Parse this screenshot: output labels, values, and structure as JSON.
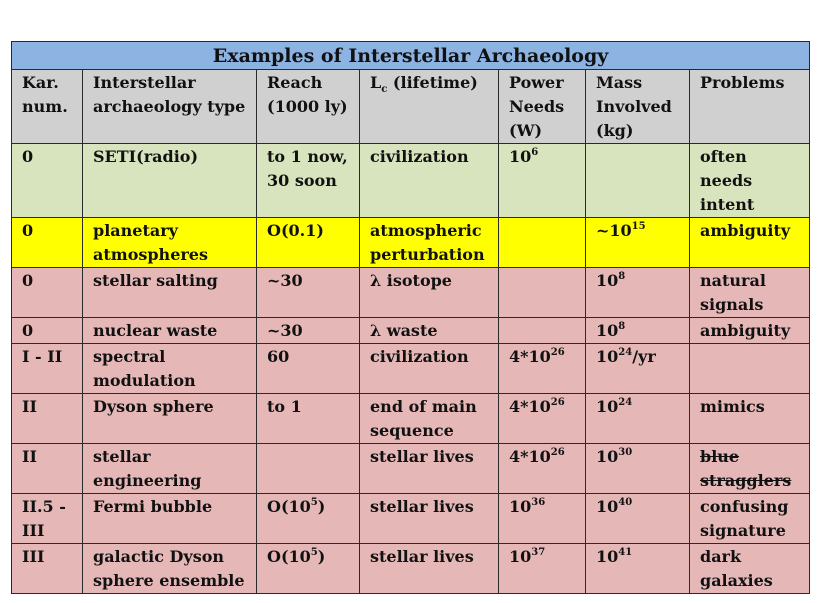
{
  "title": "Examples of Interstellar Archaeology",
  "headers": {
    "kar": "Kar. num.",
    "type": "Interstellar archaeology type",
    "reach": "Reach (1000 ly)",
    "lc": "L",
    "lc_sub": "c",
    "lc_rest": " (lifetime)",
    "power": "Power Needs (W)",
    "mass": "Mass Involved (kg)",
    "problems": "Problems"
  },
  "rows": [
    {
      "kar": "0",
      "type": "SETI(radio)",
      "reach": "to 1 now, 30 soon",
      "lc": "civilization",
      "power": {
        "base": "10",
        "exp": "6",
        "suffix": ""
      },
      "mass": {
        "pre": "",
        "base": "",
        "exp": "",
        "suffix": ""
      },
      "problems": "often needs intent"
    },
    {
      "kar": "0",
      "type": "planetary atmospheres",
      "reach": "O(0.1)",
      "lc": "atmospheric perturbation",
      "power": {
        "base": "",
        "exp": "",
        "suffix": ""
      },
      "mass": {
        "pre": "~",
        "base": "10",
        "exp": "15",
        "suffix": ""
      },
      "problems": "ambiguity"
    },
    {
      "kar": "0",
      "type": "stellar salting",
      "reach": "~30",
      "lc": "λ isotope",
      "power": {
        "base": "",
        "exp": "",
        "suffix": ""
      },
      "mass": {
        "pre": "",
        "base": "10",
        "exp": "8",
        "suffix": ""
      },
      "problems": "natural signals"
    },
    {
      "kar": "0",
      "type": "nuclear waste",
      "reach": "~30",
      "lc": "λ waste",
      "power": {
        "base": "",
        "exp": "",
        "suffix": ""
      },
      "mass": {
        "pre": "",
        "base": "10",
        "exp": "8",
        "suffix": ""
      },
      "problems": "ambiguity"
    },
    {
      "kar": "I - II",
      "type": "spectral modulation",
      "reach": "60",
      "lc": "civilization",
      "power": {
        "base": "4*10",
        "exp": "26",
        "suffix": ""
      },
      "mass": {
        "pre": "",
        "base": "10",
        "exp": "24",
        "suffix": "/yr"
      },
      "problems": ""
    },
    {
      "kar": "II",
      "type": "Dyson sphere",
      "reach": "to 1",
      "lc": "end of main sequence",
      "power": {
        "base": "4*10",
        "exp": "26",
        "suffix": ""
      },
      "mass": {
        "pre": "",
        "base": "10",
        "exp": "24",
        "suffix": ""
      },
      "problems": "mimics"
    },
    {
      "kar": "II",
      "type": "stellar engineering",
      "reach": "",
      "lc": "stellar lives",
      "power": {
        "base": "4*10",
        "exp": "26",
        "suffix": ""
      },
      "mass": {
        "pre": "",
        "base": "10",
        "exp": "30",
        "suffix": ""
      },
      "problems": "blue stragglers"
    },
    {
      "kar": "II.5 - III",
      "type": "Fermi bubble",
      "reach_parts": {
        "pre": "O(10",
        "exp": "5",
        "post": ")"
      },
      "lc": "stellar lives",
      "power": {
        "base": "10",
        "exp": "36",
        "suffix": ""
      },
      "mass": {
        "pre": "",
        "base": "10",
        "exp": "40",
        "suffix": ""
      },
      "problems": "confusing signature"
    },
    {
      "kar": "III",
      "type": "galactic Dyson sphere ensemble",
      "reach_parts": {
        "pre": "O(10",
        "exp": "5",
        "post": ")"
      },
      "lc": "stellar lives",
      "power": {
        "base": "10",
        "exp": "37",
        "suffix": ""
      },
      "mass": {
        "pre": "",
        "base": "10",
        "exp": "41",
        "suffix": ""
      },
      "problems": "dark galaxies"
    }
  ],
  "colors": {
    "title_bg": "#8db3e2",
    "header_bg": "#d0d0d0",
    "green_row": "#d7e4bd",
    "yellow_row": "#ffff00",
    "pink_row": "#e5b8b7"
  }
}
